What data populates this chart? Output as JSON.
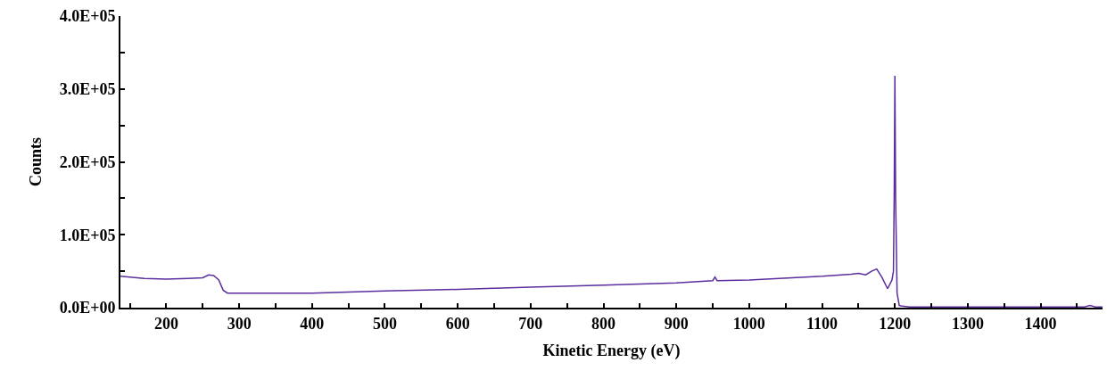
{
  "chart_data": {
    "type": "line",
    "xlabel": "Kinetic Energy (eV)",
    "ylabel": "Counts",
    "xlim": [
      137,
      1485
    ],
    "ylim": [
      0,
      400000
    ],
    "xticks": [
      {
        "value": 150,
        "label": null
      },
      200,
      {
        "value": 250,
        "label": null
      },
      300,
      {
        "value": 350,
        "label": null
      },
      400,
      {
        "value": 450,
        "label": null
      },
      500,
      {
        "value": 550,
        "label": null
      },
      600,
      {
        "value": 650,
        "label": null
      },
      700,
      {
        "value": 750,
        "label": null
      },
      800,
      {
        "value": 850,
        "label": null
      },
      900,
      {
        "value": 950,
        "label": null
      },
      1000,
      {
        "value": 1050,
        "label": null
      },
      1100,
      {
        "value": 1150,
        "label": null
      },
      1200,
      {
        "value": 1250,
        "label": null
      },
      1300,
      {
        "value": 1350,
        "label": null
      },
      1400,
      {
        "value": 1450,
        "label": null
      }
    ],
    "yticks": [
      {
        "value": 0,
        "label": "0.0E+00"
      },
      {
        "value": 50000,
        "label": null
      },
      {
        "value": 100000,
        "label": "1.0E+05"
      },
      {
        "value": 150000,
        "label": null
      },
      {
        "value": 200000,
        "label": "2.0E+05"
      },
      {
        "value": 250000,
        "label": null
      },
      {
        "value": 300000,
        "label": "3.0E+05"
      },
      {
        "value": 350000,
        "label": null
      },
      {
        "value": 400000,
        "label": "4.0E+05"
      }
    ],
    "marker": "none",
    "line_style": "solid",
    "series": [
      {
        "color": "#5b2d9e",
        "x": [
          137,
          170,
          200,
          230,
          250,
          258,
          265,
          272,
          278,
          284,
          300,
          400,
          500,
          600,
          700,
          800,
          900,
          950,
          953,
          956,
          1000,
          1100,
          1140,
          1150,
          1160,
          1168,
          1175,
          1182,
          1190,
          1196,
          1198,
          1199,
          1200,
          1201,
          1203,
          1206,
          1210,
          1220,
          1300,
          1400,
          1460,
          1468,
          1475,
          1485
        ],
        "values": [
          43000,
          40000,
          39000,
          40000,
          41000,
          45000,
          44000,
          38000,
          24000,
          20000,
          20000,
          20000,
          23000,
          25000,
          28000,
          31000,
          34000,
          37000,
          42000,
          37000,
          38000,
          43000,
          46000,
          47000,
          45000,
          50000,
          53000,
          42000,
          26000,
          38000,
          50000,
          150000,
          318000,
          150000,
          20000,
          3000,
          2000,
          1000,
          1000,
          1000,
          1000,
          3000,
          1000,
          1000
        ]
      }
    ]
  }
}
